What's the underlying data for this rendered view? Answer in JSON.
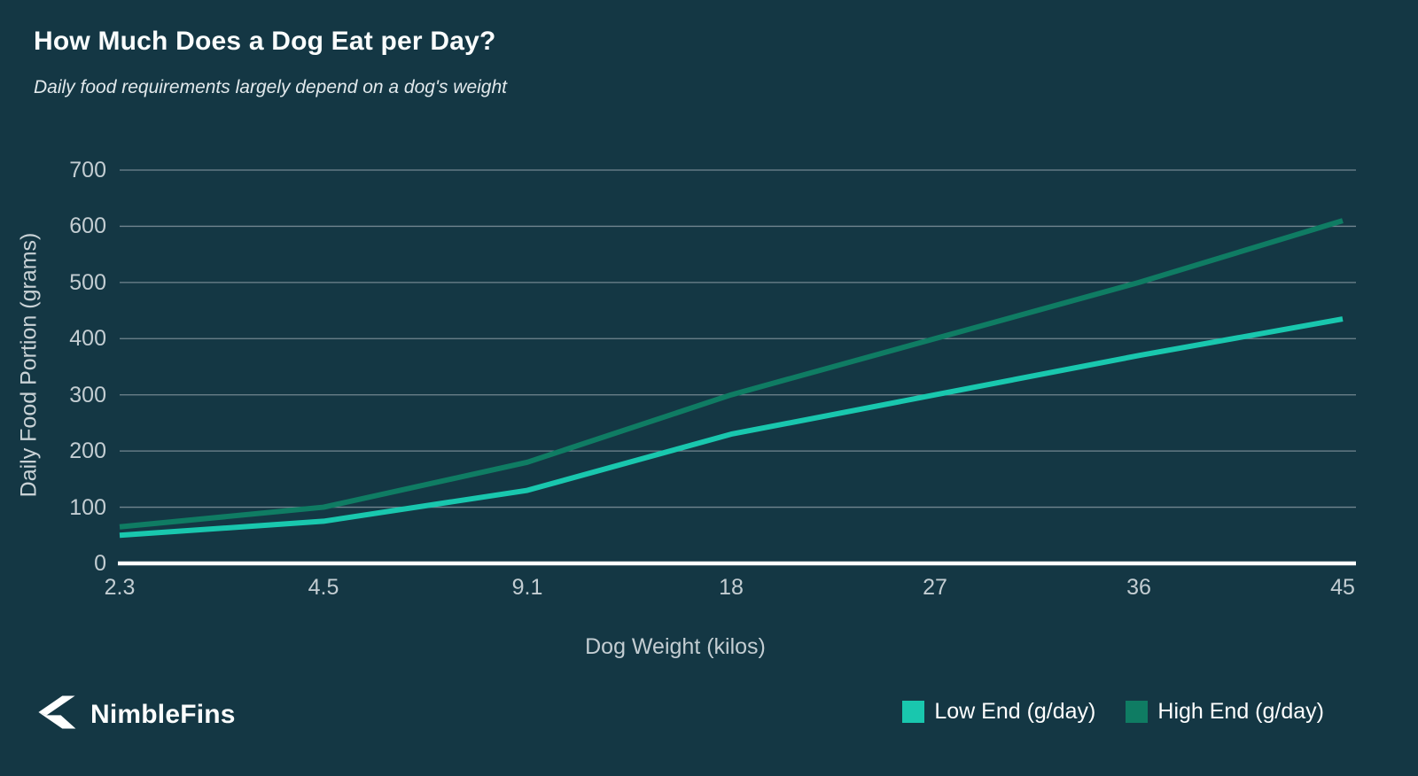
{
  "page": {
    "title": "How Much Does a Dog Eat per Day?",
    "subtitle": "Daily food requirements largely depend on a dog's weight"
  },
  "footer": {
    "brand": "NimbleFins",
    "logo_icon": "nimblefins-fin-arrow"
  },
  "colors": {
    "background": "#143744",
    "title_text": "#fafdfd",
    "tick_text": "#c3cdd2",
    "gridline": "#91a2aa",
    "baseline": "#ffffff",
    "low_series": "#19c7ae",
    "high_series": "#0f7c63"
  },
  "chart_data": {
    "type": "line",
    "title": "How Much Does a Dog Eat per Day?",
    "subtitle": "Daily food requirements largely depend on a dog's weight",
    "xlabel": "Dog Weight (kilos)",
    "ylabel": "Daily Food Portion (grams)",
    "categories": [
      "2.3",
      "4.5",
      "9.1",
      "18",
      "27",
      "36",
      "45"
    ],
    "y_ticks": [
      0,
      100,
      200,
      300,
      400,
      500,
      600,
      700
    ],
    "ylim": [
      0,
      700
    ],
    "grid": "horizontal",
    "legend_position": "bottom-right",
    "series": [
      {
        "name": "Low End (g/day)",
        "color": "#19c7ae",
        "values": [
          50,
          75,
          130,
          230,
          300,
          370,
          435
        ]
      },
      {
        "name": "High End (g/day)",
        "color": "#0f7c63",
        "values": [
          65,
          100,
          180,
          300,
          400,
          500,
          610
        ]
      }
    ]
  }
}
